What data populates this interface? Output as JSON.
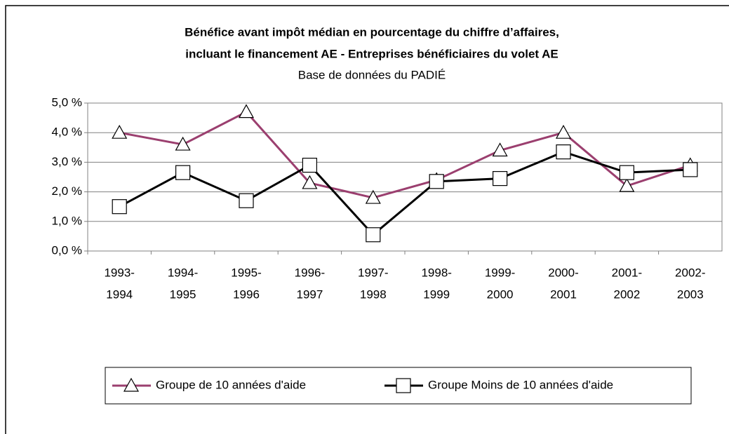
{
  "chart_data": {
    "type": "line",
    "title": [
      "Bénéfice avant impôt médian en pourcentage du chiffre d’affaires,",
      "incluant le financement AE - Entreprises bénéficiaires du volet AE"
    ],
    "subtitle": "Base de données du PADIÉ",
    "categories": [
      [
        "1993-",
        "1994"
      ],
      [
        "1994-",
        "1995"
      ],
      [
        "1995-",
        "1996"
      ],
      [
        "1996-",
        "1997"
      ],
      [
        "1997-",
        "1998"
      ],
      [
        "1998-",
        "1999"
      ],
      [
        "1999-",
        "2000"
      ],
      [
        "2000-",
        "2001"
      ],
      [
        "2001-",
        "2002"
      ],
      [
        "2002-",
        "2003"
      ]
    ],
    "series": [
      {
        "name": "Groupe de 10 années d'aide",
        "color": "#9b3f6f",
        "marker": "triangle",
        "values": [
          4.0,
          3.6,
          4.7,
          2.3,
          1.8,
          2.4,
          3.4,
          4.0,
          2.2,
          2.9
        ]
      },
      {
        "name": "Groupe Moins de 10 années d'aide",
        "color": "#000000",
        "marker": "square",
        "values": [
          1.5,
          2.65,
          1.7,
          2.9,
          0.55,
          2.35,
          2.45,
          3.35,
          2.65,
          2.75
        ]
      }
    ],
    "ylim": [
      0,
      5
    ],
    "yticks": [
      {
        "value": 0,
        "label": "0,0 %"
      },
      {
        "value": 1,
        "label": "1,0 %"
      },
      {
        "value": 2,
        "label": "2,0 %"
      },
      {
        "value": 3,
        "label": "3,0 %"
      },
      {
        "value": 4,
        "label": "4,0 %"
      },
      {
        "value": 5,
        "label": "5,0 %"
      }
    ],
    "grid": true,
    "legend": "bottom"
  }
}
